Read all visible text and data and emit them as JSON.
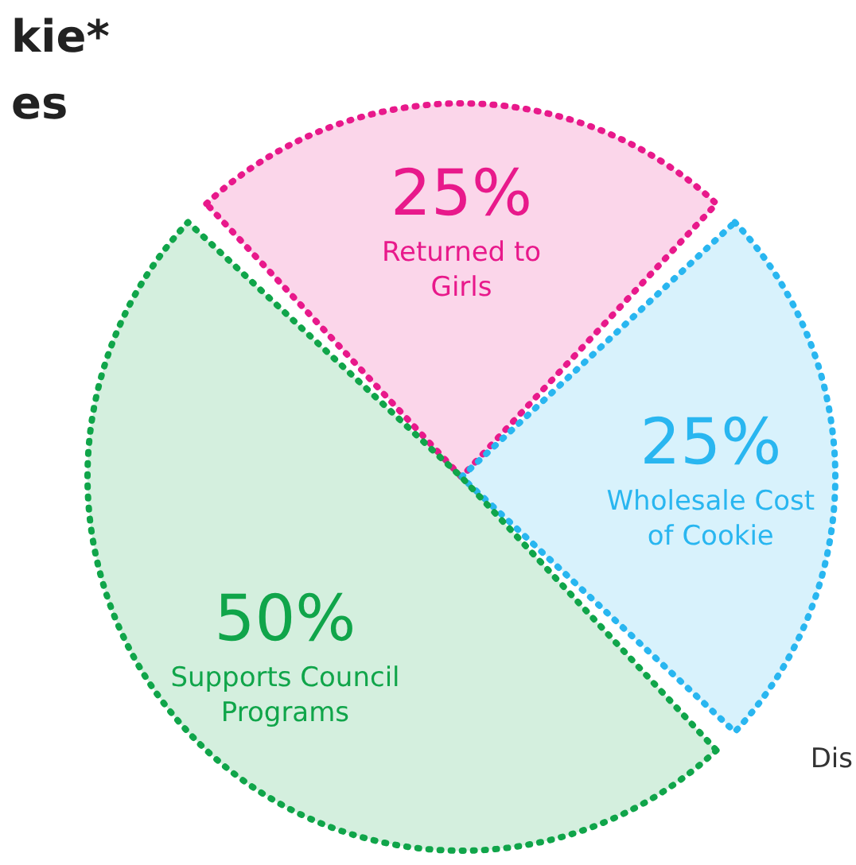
{
  "chart_data": {
    "type": "pie",
    "title": "kie*",
    "subtitle": "es",
    "annotations": [
      "Dis"
    ],
    "categories": [
      "Returned to Girls",
      "Wholesale Cost of Cookie",
      "Supports Council Programs"
    ],
    "values": [
      25,
      25,
      50
    ],
    "value_labels": [
      "25%",
      "25%",
      "50%"
    ],
    "colors": [
      "#e8198b",
      "#29b6f0",
      "#10a54a"
    ],
    "legend": false
  }
}
